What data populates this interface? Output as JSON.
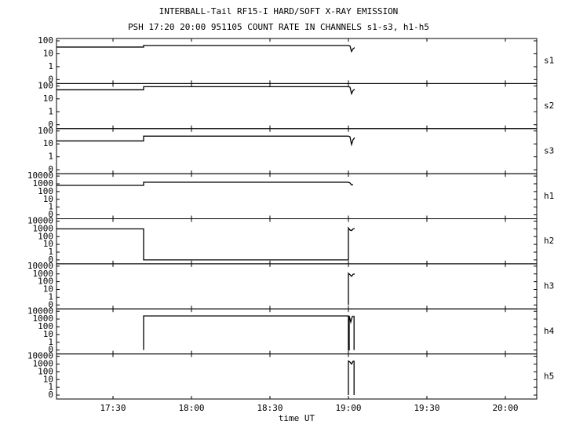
{
  "chart_data": [
    {
      "type": "line",
      "title": "INTERBALL-Tail RF15-I HARD/SOFT X-RAY EMISSION",
      "subtitle": "PSH 17:20 20:00 951105  COUNT RATE IN CHANNELS s1-s3, h1-h5",
      "yscale": "symlog",
      "xlim": [
        17.14,
        20.2
      ],
      "ylim": [
        0,
        100
      ],
      "yticks": [
        100,
        10,
        1,
        0
      ],
      "series": [
        {
          "name": "s1",
          "color": "#000000",
          "x": [
            17.14,
            17.695,
            17.695,
            19.0,
            19.01,
            19.02,
            19.03,
            19.04
          ],
          "values": [
            33,
            33,
            44,
            44,
            40,
            15,
            25,
            30
          ]
        }
      ]
    },
    {
      "type": "line",
      "yscale": "symlog",
      "xlim": [
        17.14,
        20.2
      ],
      "ylim": [
        0,
        100
      ],
      "yticks": [
        100,
        10,
        1,
        0
      ],
      "series": [
        {
          "name": "s2",
          "color": "#000000",
          "x": [
            17.14,
            17.695,
            17.695,
            19.0,
            19.01,
            19.02,
            19.03,
            19.04
          ],
          "values": [
            50,
            50,
            87,
            87,
            80,
            25,
            45,
            55
          ]
        }
      ]
    },
    {
      "type": "line",
      "yscale": "symlog",
      "xlim": [
        17.14,
        20.2
      ],
      "ylim": [
        0,
        100
      ],
      "yticks": [
        100,
        10,
        1,
        0
      ],
      "series": [
        {
          "name": "s3",
          "color": "#000000",
          "x": [
            17.14,
            17.695,
            17.695,
            19.0,
            19.01,
            19.02,
            19.03,
            19.04
          ],
          "values": [
            17,
            17,
            40,
            40,
            35,
            9,
            22,
            30
          ]
        }
      ]
    },
    {
      "type": "line",
      "yscale": "symlog",
      "xlim": [
        17.14,
        20.2
      ],
      "ylim": [
        0,
        10000
      ],
      "yticks": [
        10000,
        1000,
        100,
        10,
        1,
        0
      ],
      "series": [
        {
          "name": "h1",
          "color": "#000000",
          "x": [
            17.14,
            17.695,
            17.695,
            19.0,
            19.01,
            19.02,
            19.03
          ],
          "values": [
            630,
            630,
            1600,
            1600,
            1300,
            700,
            800
          ]
        }
      ]
    },
    {
      "type": "line",
      "yscale": "symlog",
      "xlim": [
        17.14,
        20.2
      ],
      "ylim": [
        0,
        10000
      ],
      "yticks": [
        10000,
        1000,
        100,
        10,
        1,
        0
      ],
      "series": [
        {
          "name": "h2",
          "color": "#000000",
          "x": [
            17.14,
            17.695,
            17.695,
            19.0,
            19.0,
            19.01,
            19.02,
            19.03,
            19.04
          ],
          "values": [
            1000,
            1000,
            0,
            0,
            1300,
            700,
            600,
            1000,
            1100
          ]
        }
      ]
    },
    {
      "type": "line",
      "yscale": "symlog",
      "xlim": [
        17.14,
        20.2
      ],
      "ylim": [
        0,
        10000
      ],
      "yticks": [
        10000,
        1000,
        100,
        10,
        1,
        0
      ],
      "series": [
        {
          "name": "h3",
          "color": "#000000",
          "x": [
            19.0,
            19.0,
            19.01,
            19.02,
            19.03,
            19.04
          ],
          "values": [
            0,
            1200,
            800,
            500,
            900,
            1000
          ]
        }
      ]
    },
    {
      "type": "line",
      "yscale": "symlog",
      "xlim": [
        17.14,
        20.2
      ],
      "ylim": [
        0,
        10000
      ],
      "yticks": [
        10000,
        1000,
        100,
        10,
        1,
        0
      ],
      "series": [
        {
          "name": "h4",
          "color": "#000000",
          "x": [
            17.695,
            17.695,
            19.0,
            19.0,
            19.005,
            19.005,
            19.015,
            19.025,
            19.036,
            19.036
          ],
          "values": [
            0,
            2500,
            2500,
            0,
            0,
            2500,
            400,
            2200,
            2200,
            0
          ]
        }
      ]
    },
    {
      "type": "line",
      "yscale": "symlog",
      "xlim": [
        17.14,
        20.2
      ],
      "ylim": [
        0,
        10000
      ],
      "yticks": [
        10000,
        1000,
        100,
        10,
        1,
        0
      ],
      "xlabel": "time UT",
      "xticks": [
        {
          "value": 17.5,
          "label": "17:30"
        },
        {
          "value": 18.0,
          "label": "18:00"
        },
        {
          "value": 18.5,
          "label": "18:30"
        },
        {
          "value": 19.0,
          "label": "19:00"
        },
        {
          "value": 19.5,
          "label": "19:30"
        },
        {
          "value": 20.0,
          "label": "20:00"
        }
      ],
      "series": [
        {
          "name": "h5",
          "color": "#000000",
          "x": [
            19.0,
            19.0,
            19.01,
            19.02,
            19.03,
            19.036,
            19.036
          ],
          "values": [
            0,
            2500,
            1800,
            1000,
            2300,
            2300,
            0
          ]
        }
      ]
    }
  ]
}
